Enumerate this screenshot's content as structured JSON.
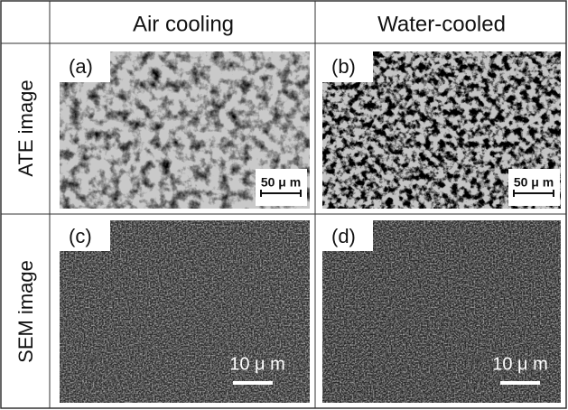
{
  "header": {
    "columns": [
      "Air cooling",
      "Water-cooled"
    ]
  },
  "rows": [
    {
      "label": "ATE image",
      "panels": [
        {
          "label": "(a)",
          "scale": "50 μ m"
        },
        {
          "label": "(b)",
          "scale": "50 μ m"
        }
      ]
    },
    {
      "label": "SEM image",
      "panels": [
        {
          "label": "(c)",
          "scale": "10 μ m"
        },
        {
          "label": "(d)",
          "scale": "10 μ m"
        }
      ]
    }
  ]
}
